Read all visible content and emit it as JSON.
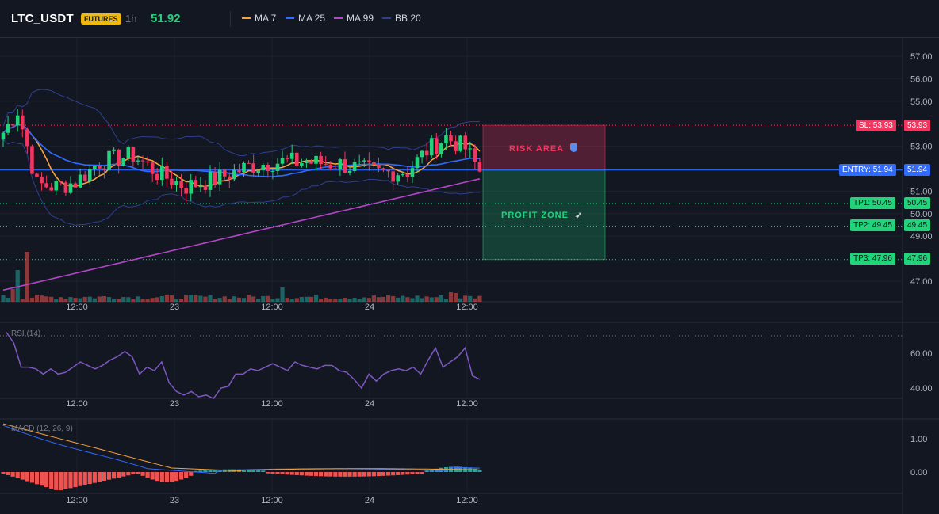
{
  "header": {
    "symbol": "LTC_USDT",
    "badge": "FUTURES",
    "timeframe": "1h",
    "last_price": "51.92",
    "legend": [
      {
        "label": "MA 7",
        "color": "#f7a23b"
      },
      {
        "label": "MA 25",
        "color": "#2f6bff"
      },
      {
        "label": "MA 99",
        "color": "#b545c8"
      },
      {
        "label": "BB 20",
        "color": "#2e3f8f"
      }
    ]
  },
  "main_panel": {
    "price_axis": [
      "57.00",
      "56.00",
      "55.00",
      "53.00",
      "51.00",
      "50.00",
      "49.00",
      "47.00"
    ],
    "time_axis": [
      "12:00",
      "23",
      "12:00",
      "24",
      "12:00"
    ],
    "risk_area_label": "RISK AREA",
    "profit_zone_label": "PROFIT ZONE",
    "risk_icon": "shield-icon",
    "profit_icon": "rocket-icon",
    "levels": [
      {
        "label": "SL: 53.93",
        "value": "53.93",
        "color": "#f23660",
        "price": 53.93
      },
      {
        "label": "ENTRY: 51.94",
        "value": "51.94",
        "color": "#2f6bff",
        "price": 51.94
      },
      {
        "label": "TP1: 50.45",
        "value": "50.45",
        "color": "#1fd47a",
        "price": 50.45
      },
      {
        "label": "TP2: 49.45",
        "value": "49.45",
        "color": "#1fd47a",
        "price": 49.45
      },
      {
        "label": "TP3: 47.96",
        "value": "47.96",
        "color": "#1fd47a",
        "price": 47.96
      }
    ]
  },
  "rsi_panel": {
    "title": "RSI (14)",
    "axis": [
      "60.00",
      "40.00"
    ]
  },
  "macd_panel": {
    "title": "MACD (12, 26, 9)",
    "axis": [
      "1.00",
      "0.00"
    ]
  },
  "colors": {
    "bull": "#26a69a",
    "bear": "#ef5350",
    "bull_bright": "#1fd47a",
    "bear_bright": "#f23660"
  }
}
